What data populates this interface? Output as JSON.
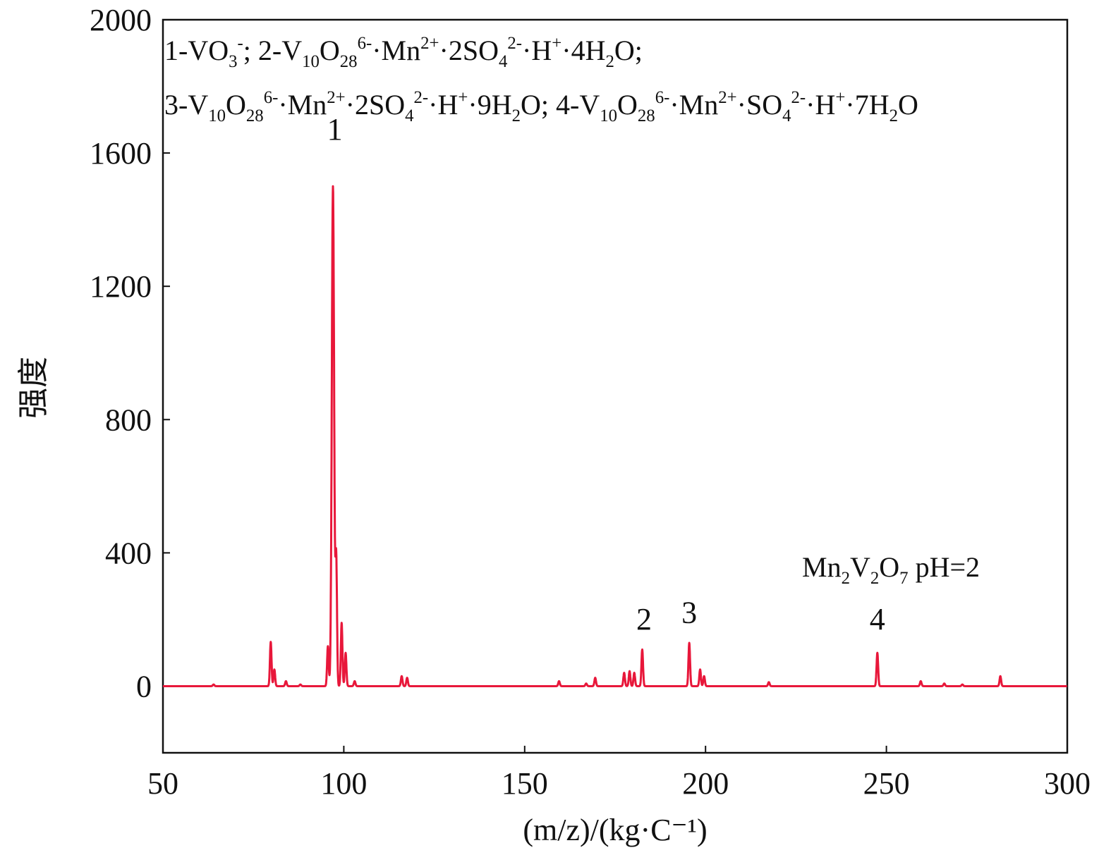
{
  "chart_data": {
    "type": "line",
    "title": "",
    "xlabel": "(m/z)/(kg·C⁻¹)",
    "xlabel_parts": {
      "open": "(",
      "m": "m",
      "rest": "/z)/(kg·C",
      "sup": "−1",
      "close": ")"
    },
    "ylabel": "强度",
    "xlim": [
      50,
      300
    ],
    "ylim": [
      -200,
      2000
    ],
    "xticks": [
      50,
      100,
      150,
      200,
      250,
      300
    ],
    "yticks": [
      0,
      400,
      800,
      1200,
      1600,
      2000
    ],
    "grid": false,
    "series_color": "#e8173a",
    "baseline": 0,
    "peaks": [
      {
        "mz": 64,
        "intensity": 5
      },
      {
        "mz": 79.8,
        "intensity": 133
      },
      {
        "mz": 80.8,
        "intensity": 50
      },
      {
        "mz": 84,
        "intensity": 15
      },
      {
        "mz": 88,
        "intensity": 5
      },
      {
        "mz": 95.6,
        "intensity": 120
      },
      {
        "mz": 97,
        "intensity": 1500
      },
      {
        "mz": 97.9,
        "intensity": 380
      },
      {
        "mz": 99.4,
        "intensity": 190
      },
      {
        "mz": 100.5,
        "intensity": 100
      },
      {
        "mz": 103,
        "intensity": 15
      },
      {
        "mz": 116,
        "intensity": 30
      },
      {
        "mz": 117.5,
        "intensity": 25
      },
      {
        "mz": 159.5,
        "intensity": 15
      },
      {
        "mz": 167,
        "intensity": 8
      },
      {
        "mz": 169.5,
        "intensity": 25
      },
      {
        "mz": 177.5,
        "intensity": 40
      },
      {
        "mz": 179,
        "intensity": 45
      },
      {
        "mz": 180.3,
        "intensity": 40
      },
      {
        "mz": 182.5,
        "intensity": 110
      },
      {
        "mz": 195.5,
        "intensity": 130
      },
      {
        "mz": 198.5,
        "intensity": 50
      },
      {
        "mz": 199.6,
        "intensity": 30
      },
      {
        "mz": 217.5,
        "intensity": 12
      },
      {
        "mz": 247.5,
        "intensity": 100
      },
      {
        "mz": 259.5,
        "intensity": 15
      },
      {
        "mz": 266,
        "intensity": 8
      },
      {
        "mz": 271,
        "intensity": 5
      },
      {
        "mz": 281.5,
        "intensity": 30
      }
    ],
    "peak_labels": [
      {
        "text": "1",
        "mz": 97.5,
        "intensity": 1640
      },
      {
        "text": "2",
        "mz": 183,
        "intensity": 170
      },
      {
        "text": "3",
        "mz": 195.5,
        "intensity": 190
      },
      {
        "text": "4",
        "mz": 247.5,
        "intensity": 170
      }
    ],
    "annotation": [
      {
        "t": "Mn"
      },
      {
        "t": "2",
        "s": "sub"
      },
      {
        "t": "V"
      },
      {
        "t": "2",
        "s": "sub"
      },
      {
        "t": "O"
      },
      {
        "t": "7",
        "s": "sub"
      },
      {
        "t": " pH=2"
      }
    ],
    "legend_lines": [
      [
        {
          "t": "1-VO"
        },
        {
          "t": "3",
          "s": "sub"
        },
        {
          "t": "-",
          "s": "sup"
        },
        {
          "t": "; 2-V"
        },
        {
          "t": "10",
          "s": "sub"
        },
        {
          "t": "O"
        },
        {
          "t": "28",
          "s": "sub"
        },
        {
          "t": "6-",
          "s": "sup"
        },
        {
          "t": "·Mn"
        },
        {
          "t": "2+",
          "s": "sup"
        },
        {
          "t": "·2SO"
        },
        {
          "t": "4",
          "s": "sub"
        },
        {
          "t": "2-",
          "s": "sup"
        },
        {
          "t": "·H"
        },
        {
          "t": "+",
          "s": "sup"
        },
        {
          "t": "·4H"
        },
        {
          "t": "2",
          "s": "sub"
        },
        {
          "t": "O;"
        }
      ],
      [
        {
          "t": "3-V"
        },
        {
          "t": "10",
          "s": "sub"
        },
        {
          "t": "O"
        },
        {
          "t": "28",
          "s": "sub"
        },
        {
          "t": "6-",
          "s": "sup"
        },
        {
          "t": "·Mn"
        },
        {
          "t": "2+",
          "s": "sup"
        },
        {
          "t": "·2SO"
        },
        {
          "t": "4",
          "s": "sub"
        },
        {
          "t": "2-",
          "s": "sup"
        },
        {
          "t": "·H"
        },
        {
          "t": "+",
          "s": "sup"
        },
        {
          "t": "·9H"
        },
        {
          "t": "2",
          "s": "sub"
        },
        {
          "t": "O; 4-V"
        },
        {
          "t": "10",
          "s": "sub"
        },
        {
          "t": "O"
        },
        {
          "t": "28",
          "s": "sub"
        },
        {
          "t": "6-",
          "s": "sup"
        },
        {
          "t": "·Mn"
        },
        {
          "t": "2+",
          "s": "sup"
        },
        {
          "t": "·SO"
        },
        {
          "t": "4",
          "s": "sub"
        },
        {
          "t": "2-",
          "s": "sup"
        },
        {
          "t": "·H"
        },
        {
          "t": "+",
          "s": "sup"
        },
        {
          "t": "·7H"
        },
        {
          "t": "2",
          "s": "sub"
        },
        {
          "t": "O"
        }
      ]
    ]
  }
}
